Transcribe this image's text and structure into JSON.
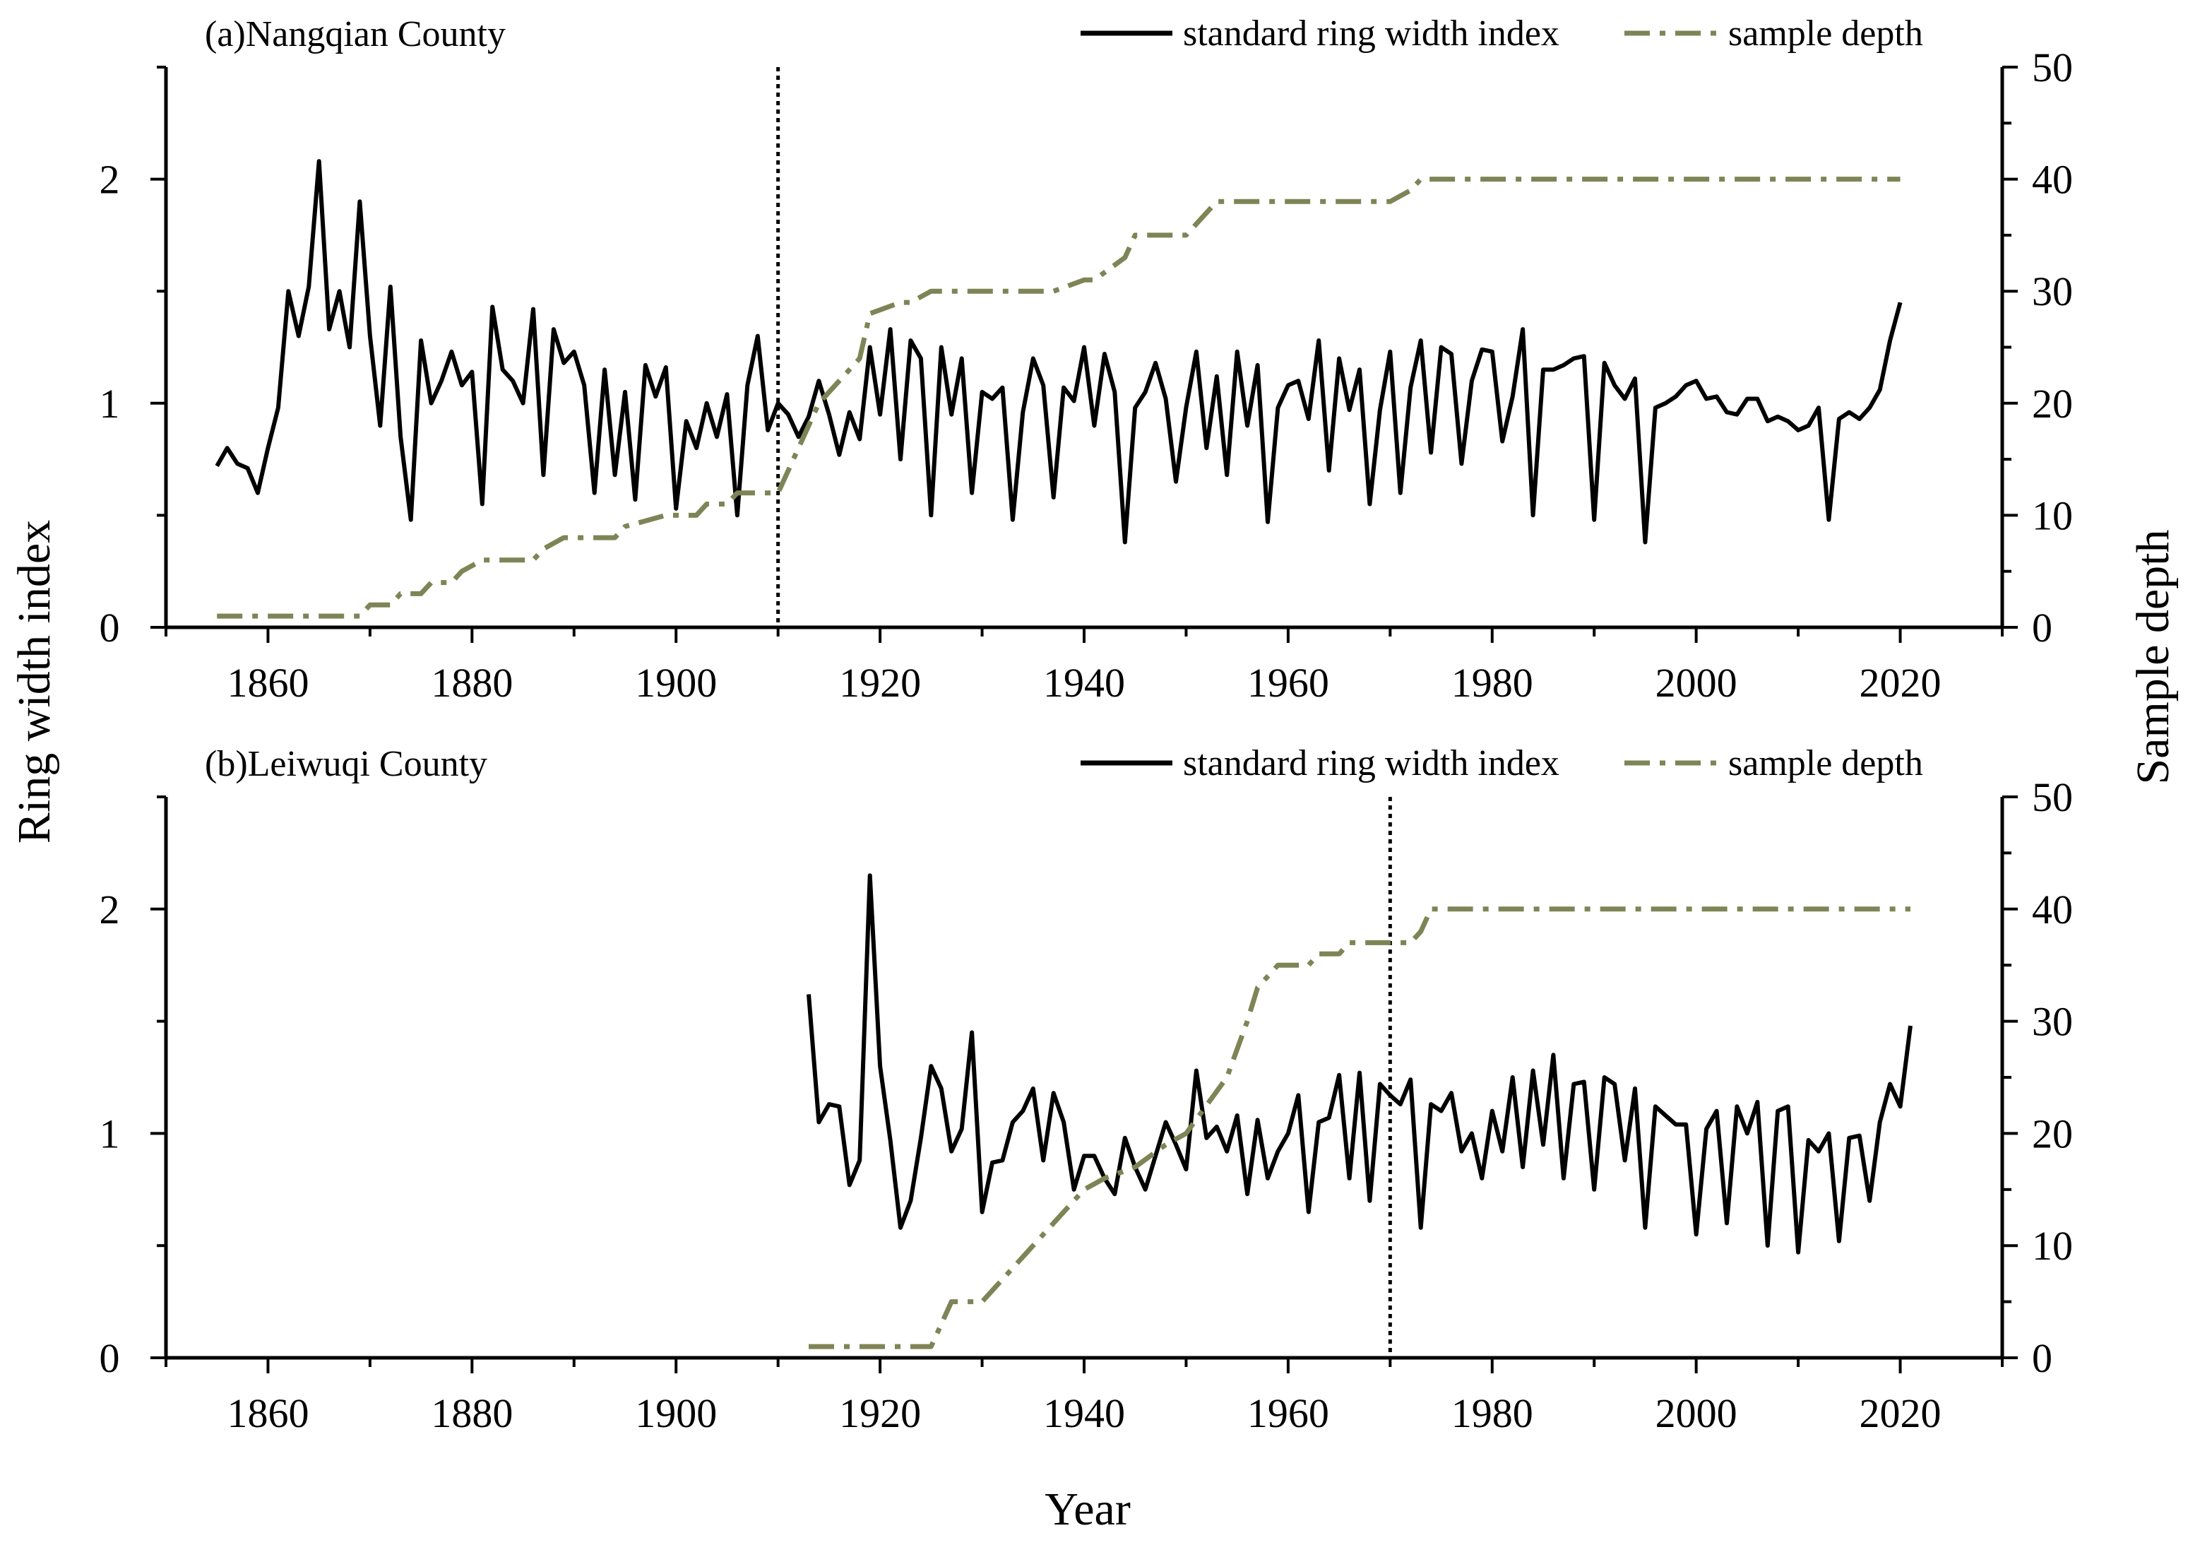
{
  "figure": {
    "xlabel": "Year",
    "ylabel_left": "Ring width index",
    "ylabel_right": "Sample depth"
  },
  "colors": {
    "ring_index": "#000000",
    "sample_depth": "#7f8456",
    "marker_line": "#000000"
  },
  "legend": {
    "ring_index_label": "standard ring width index",
    "sample_depth_label": "sample depth"
  },
  "chart_data": [
    {
      "type": "line",
      "title": "(a)Nangqian County",
      "xlabel": "Year",
      "ylabel": "Ring width index",
      "y2label": "Sample depth",
      "xlim": [
        1850,
        2030
      ],
      "ylim": [
        0,
        2.5
      ],
      "y2lim": [
        0,
        50
      ],
      "xticks": [
        1860,
        1880,
        1900,
        1920,
        1940,
        1960,
        1980,
        2000,
        2020
      ],
      "yticks": [
        0,
        1,
        2
      ],
      "y2ticks": [
        0,
        10,
        20,
        30,
        40,
        50
      ],
      "vline": 1910,
      "legend_position": "top-right",
      "series": [
        {
          "name": "standard ring width index",
          "axis": "left",
          "style": "solid",
          "x": [
            1855,
            1856,
            1857,
            1858,
            1859,
            1860,
            1861,
            1862,
            1863,
            1864,
            1865,
            1866,
            1867,
            1868,
            1869,
            1870,
            1871,
            1872,
            1873,
            1874,
            1875,
            1876,
            1877,
            1878,
            1879,
            1880,
            1881,
            1882,
            1883,
            1884,
            1885,
            1886,
            1887,
            1888,
            1889,
            1890,
            1891,
            1892,
            1893,
            1894,
            1895,
            1896,
            1897,
            1898,
            1899,
            1900,
            1901,
            1902,
            1903,
            1904,
            1905,
            1906,
            1907,
            1908,
            1909,
            1910,
            1911,
            1912,
            1913,
            1914,
            1915,
            1916,
            1917,
            1918,
            1919,
            1920,
            1921,
            1922,
            1923,
            1924,
            1925,
            1926,
            1927,
            1928,
            1929,
            1930,
            1931,
            1932,
            1933,
            1934,
            1935,
            1936,
            1937,
            1938,
            1939,
            1940,
            1941,
            1942,
            1943,
            1944,
            1945,
            1946,
            1947,
            1948,
            1949,
            1950,
            1951,
            1952,
            1953,
            1954,
            1955,
            1956,
            1957,
            1958,
            1959,
            1960,
            1961,
            1962,
            1963,
            1964,
            1965,
            1966,
            1967,
            1968,
            1969,
            1970,
            1971,
            1972,
            1973,
            1974,
            1975,
            1976,
            1977,
            1978,
            1979,
            1980,
            1981,
            1982,
            1983,
            1984,
            1985,
            1986,
            1987,
            1988,
            1989,
            1990,
            1991,
            1992,
            1993,
            1994,
            1995,
            1996,
            1997,
            1998,
            1999,
            2000,
            2001,
            2002,
            2003,
            2004,
            2005,
            2006,
            2007,
            2008,
            2009,
            2010,
            2011,
            2012,
            2013,
            2014,
            2015,
            2016,
            2017,
            2018,
            2019,
            2020
          ],
          "y": [
            0.72,
            0.8,
            0.73,
            0.71,
            0.6,
            0.8,
            0.98,
            1.5,
            1.3,
            1.52,
            2.08,
            1.33,
            1.5,
            1.25,
            1.9,
            1.3,
            0.9,
            1.52,
            0.85,
            0.48,
            1.28,
            1.0,
            1.1,
            1.23,
            1.08,
            1.14,
            0.55,
            1.43,
            1.15,
            1.1,
            1.0,
            1.42,
            0.68,
            1.33,
            1.18,
            1.23,
            1.08,
            0.6,
            1.15,
            0.68,
            1.05,
            0.57,
            1.17,
            1.03,
            1.16,
            0.53,
            0.92,
            0.8,
            1.0,
            0.85,
            1.04,
            0.5,
            1.08,
            1.3,
            0.88,
            1.0,
            0.95,
            0.85,
            0.94,
            1.1,
            0.95,
            0.77,
            0.96,
            0.84,
            1.25,
            0.95,
            1.33,
            0.75,
            1.28,
            1.2,
            0.5,
            1.25,
            0.95,
            1.2,
            0.6,
            1.05,
            1.02,
            1.07,
            0.48,
            0.96,
            1.2,
            1.08,
            0.58,
            1.07,
            1.01,
            1.25,
            0.9,
            1.22,
            1.05,
            0.38,
            0.98,
            1.05,
            1.18,
            1.02,
            0.65,
            0.98,
            1.23,
            0.8,
            1.12,
            0.68,
            1.23,
            0.9,
            1.17,
            0.47,
            0.98,
            1.08,
            1.1,
            0.93,
            1.28,
            0.7,
            1.2,
            0.97,
            1.15,
            0.55,
            0.97,
            1.23,
            0.6,
            1.07,
            1.28,
            0.78,
            1.25,
            1.22,
            0.73,
            1.1,
            1.24,
            1.23,
            0.83,
            1.03,
            1.33,
            0.5,
            1.15,
            1.15,
            1.17,
            1.2,
            1.21,
            0.48,
            1.18,
            1.08,
            1.02,
            1.11,
            0.38,
            0.98,
            1.0,
            1.03,
            1.08,
            1.1,
            1.02,
            1.03,
            0.96,
            0.95,
            1.02,
            1.02,
            0.92,
            0.94,
            0.92,
            0.88,
            0.9,
            0.98,
            0.48,
            0.93,
            0.96,
            0.93,
            0.98,
            1.06,
            1.28,
            1.45
          ]
        },
        {
          "name": "sample depth",
          "axis": "right",
          "style": "dash-dot",
          "x": [
            1855,
            1869,
            1870,
            1872,
            1873,
            1875,
            1876,
            1878,
            1879,
            1881,
            1882,
            1886,
            1887,
            1889,
            1890,
            1894,
            1895,
            1899,
            1900,
            1902,
            1903,
            1905,
            1906,
            1910,
            1911,
            1914,
            1918,
            1919,
            1922,
            1923,
            1925,
            1926,
            1936,
            1937,
            1940,
            1941,
            1944,
            1945,
            1950,
            1951,
            1953,
            1954,
            1969,
            1970,
            1972,
            1973,
            2020
          ],
          "y": [
            1,
            1,
            2,
            2,
            3,
            3,
            4,
            4,
            5,
            6,
            6,
            6,
            7,
            8,
            8,
            8,
            9,
            10,
            10,
            10,
            11,
            11,
            12,
            12,
            14,
            20,
            24,
            28,
            29,
            29,
            30,
            30,
            30,
            30,
            31,
            31,
            33,
            35,
            35,
            36,
            38,
            38,
            38,
            38,
            39,
            40,
            40
          ]
        }
      ]
    },
    {
      "type": "line",
      "title": "(b)Leiwuqi County",
      "xlabel": "Year",
      "ylabel": "Ring width index",
      "y2label": "Sample depth",
      "xlim": [
        1850,
        2030
      ],
      "ylim": [
        0,
        2.5
      ],
      "y2lim": [
        0,
        50
      ],
      "xticks": [
        1860,
        1880,
        1900,
        1920,
        1940,
        1960,
        1980,
        2000,
        2020
      ],
      "yticks": [
        0,
        1,
        2
      ],
      "y2ticks": [
        0,
        10,
        20,
        30,
        40,
        50
      ],
      "vline": 1970,
      "legend_position": "top-right",
      "series": [
        {
          "name": "standard ring width index",
          "axis": "left",
          "style": "solid",
          "x": [
            1913,
            1914,
            1915,
            1916,
            1917,
            1918,
            1919,
            1920,
            1921,
            1922,
            1923,
            1924,
            1925,
            1926,
            1927,
            1928,
            1929,
            1930,
            1931,
            1932,
            1933,
            1934,
            1935,
            1936,
            1937,
            1938,
            1939,
            1940,
            1941,
            1942,
            1943,
            1944,
            1945,
            1946,
            1947,
            1948,
            1949,
            1950,
            1951,
            1952,
            1953,
            1954,
            1955,
            1956,
            1957,
            1958,
            1959,
            1960,
            1961,
            1962,
            1963,
            1964,
            1965,
            1966,
            1967,
            1968,
            1969,
            1970,
            1971,
            1972,
            1973,
            1974,
            1975,
            1976,
            1977,
            1978,
            1979,
            1980,
            1981,
            1982,
            1983,
            1984,
            1985,
            1986,
            1987,
            1988,
            1989,
            1990,
            1991,
            1992,
            1993,
            1994,
            1995,
            1996,
            1997,
            1998,
            1999,
            2000,
            2001,
            2002,
            2003,
            2004,
            2005,
            2006,
            2007,
            2008,
            2009,
            2010,
            2011,
            2012,
            2013,
            2014,
            2015,
            2016,
            2017,
            2018,
            2019,
            2020,
            2021
          ],
          "y": [
            1.62,
            1.05,
            1.13,
            1.12,
            0.77,
            0.88,
            2.15,
            1.3,
            0.97,
            0.58,
            0.7,
            0.98,
            1.3,
            1.2,
            0.92,
            1.02,
            1.45,
            0.65,
            0.87,
            0.88,
            1.05,
            1.1,
            1.2,
            0.88,
            1.18,
            1.05,
            0.75,
            0.9,
            0.9,
            0.8,
            0.73,
            0.98,
            0.85,
            0.75,
            0.9,
            1.05,
            0.95,
            0.84,
            1.28,
            0.98,
            1.03,
            0.92,
            1.08,
            0.73,
            1.06,
            0.8,
            0.92,
            1.0,
            1.17,
            0.65,
            1.05,
            1.07,
            1.26,
            0.8,
            1.27,
            0.7,
            1.22,
            1.17,
            1.13,
            1.24,
            0.58,
            1.13,
            1.1,
            1.18,
            0.92,
            1.0,
            0.8,
            1.1,
            0.92,
            1.25,
            0.85,
            1.28,
            0.95,
            1.35,
            0.8,
            1.22,
            1.23,
            0.75,
            1.25,
            1.22,
            0.88,
            1.2,
            0.58,
            1.12,
            1.08,
            1.04,
            1.04,
            0.55,
            1.02,
            1.1,
            0.6,
            1.12,
            1.0,
            1.14,
            0.5,
            1.1,
            1.12,
            0.47,
            0.97,
            0.92,
            1.0,
            0.52,
            0.98,
            0.99,
            0.7,
            1.05,
            1.22,
            1.12,
            1.48
          ]
        },
        {
          "name": "sample depth",
          "axis": "right",
          "style": "dash-dot",
          "x": [
            1913,
            1925,
            1926,
            1927,
            1930,
            1935,
            1940,
            1942,
            1945,
            1948,
            1950,
            1954,
            1956,
            1957,
            1958,
            1959,
            1960,
            1962,
            1963,
            1965,
            1966,
            1969,
            1971,
            1972,
            1973,
            1974,
            2021
          ],
          "y": [
            1,
            1,
            3,
            5,
            5,
            10,
            15,
            16,
            17,
            19,
            20,
            25,
            30,
            33,
            34,
            35,
            35,
            35,
            36,
            36,
            37,
            37,
            37,
            37,
            38,
            40,
            40
          ]
        }
      ]
    }
  ]
}
